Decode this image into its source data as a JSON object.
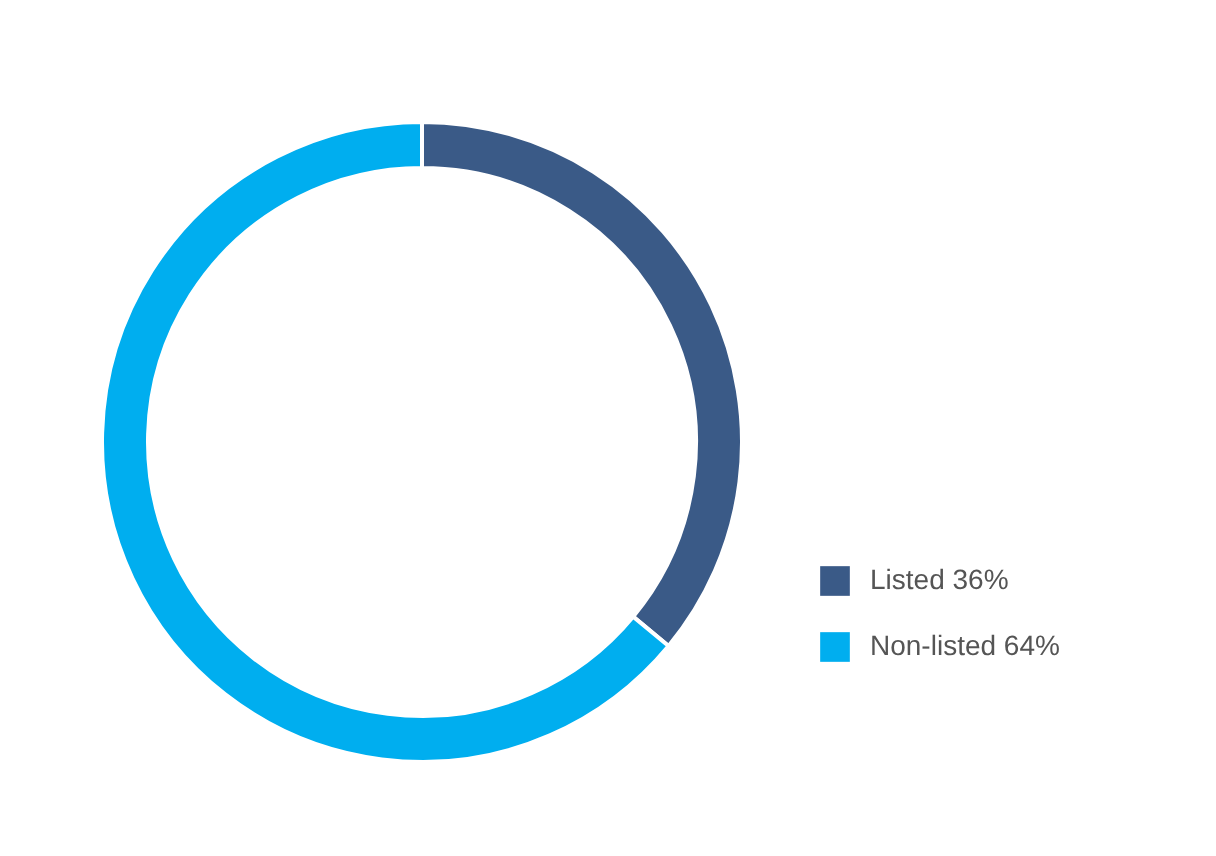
{
  "chart_data": {
    "type": "donut",
    "categories": [
      "Listed 36%",
      "Non-listed 64%"
    ],
    "values": [
      36,
      64
    ],
    "colors": [
      "#3a5a87",
      "#00aeef"
    ],
    "legend": "right"
  }
}
